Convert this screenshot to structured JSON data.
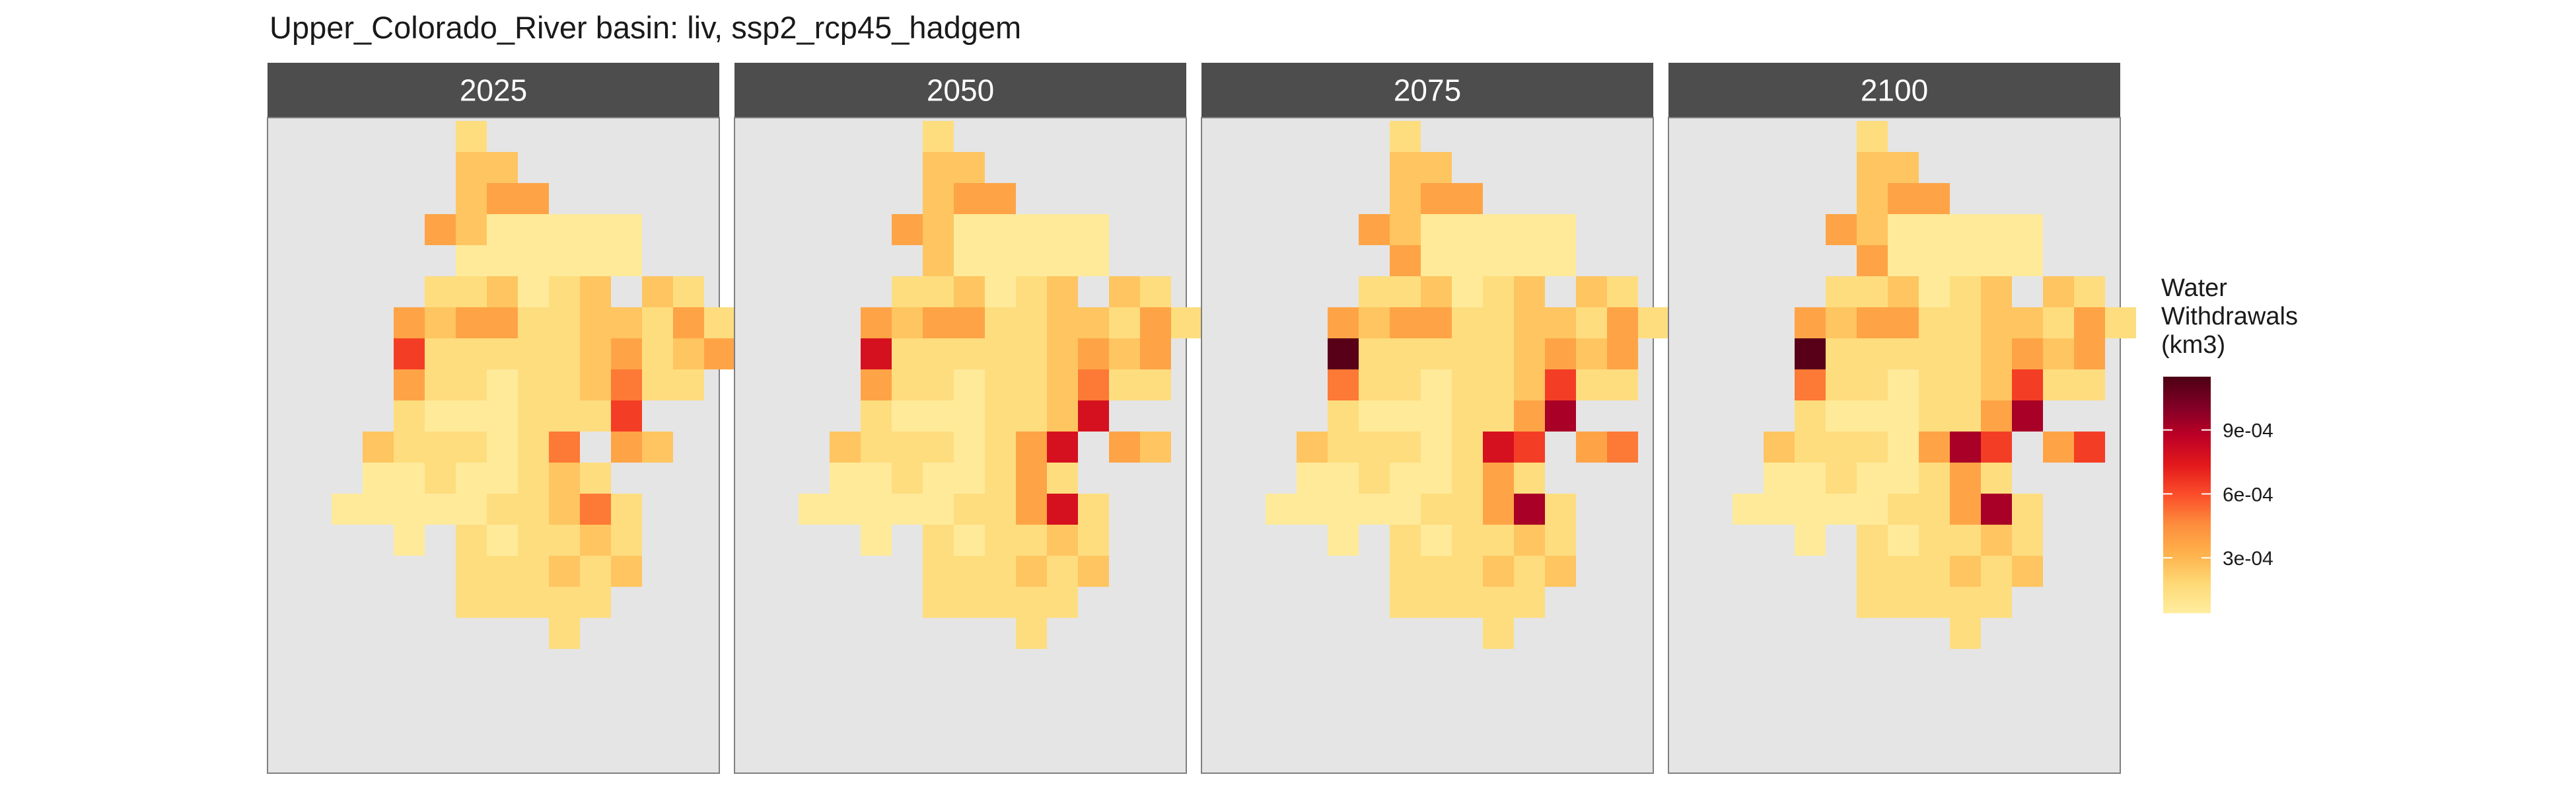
{
  "title": "Upper_Colorado_River basin: liv, ssp2_rcp45_hadgem",
  "legend": {
    "title_lines": [
      "Water",
      "Withdrawals",
      "(km3)"
    ],
    "ticks": [
      {
        "label": "3e-04",
        "value": 0.0003
      },
      {
        "label": "6e-04",
        "value": 0.0006
      },
      {
        "label": "9e-04",
        "value": 0.0009
      }
    ],
    "min": 4e-05,
    "max": 0.00115,
    "colors": [
      "#FFEDA0",
      "#FED976",
      "#FEB24C",
      "#FD8D3C",
      "#FC4E2A",
      "#E31A1C",
      "#BD0026",
      "#800026",
      "#4D0014"
    ]
  },
  "chart_data": {
    "type": "heatmap",
    "title": "Upper_Colorado_River basin: liv, ssp2_rcp45_hadgem",
    "colorbar_label": "Water Withdrawals (km3)",
    "panels": [
      {
        "label": "2025",
        "rows": [
          "      A              ",
          "      BB             ",
          "      BCC            ",
          "     CBaaaaa         ",
          "      aaaaaa         ",
          "     AABaAB BA       ",
          "    CBCCAABBACA      ",
          "    EAAAAABCABC      ",
          "    CAAaAABDAA       ",
          "    AaaaAAAE         ",
          "   BAAAaAD CB        ",
          "   aaAaaABA          ",
          "  aaaaaAABDA         ",
          "    a AaAABA         ",
          "      AAABAB         ",
          "      AAAAA          ",
          "         A           "
        ]
      },
      {
        "label": "2050",
        "rows": [
          "      A              ",
          "      BB             ",
          "      BCC            ",
          "     CBaaaaa         ",
          "      Baaaaa         ",
          "     AABaAB BA       ",
          "    CBCCAABBACA      ",
          "    FAAAAABCBC       ",
          "    CAAaAABDAA       ",
          "    AaaaAABF         ",
          "   BAAAaACF CB       ",
          "   aaAaaACA          ",
          "  aaaaaAACFA         ",
          "    a AaAABA         ",
          "      AAABAB         ",
          "      AAAAA          ",
          "         A           "
        ]
      },
      {
        "label": "2075",
        "rows": [
          "      A              ",
          "      BB             ",
          "      BCC            ",
          "     CBaaaaa         ",
          "      Caaaaa         ",
          "     AABaAB BA       ",
          "    CBCCAABBACA      ",
          "    HAAAAABCBC       ",
          "    DAAaAABEAA       ",
          "    AaaaAACG         ",
          "   BAAAaAFE CD       ",
          "   aaAaaACA          ",
          "  aaaaaAACGA         ",
          "    a AaAABA         ",
          "      AAABAB         ",
          "      AAAAA          ",
          "         A           "
        ]
      },
      {
        "label": "2100",
        "rows": [
          "      A              ",
          "      BB             ",
          "      BCC            ",
          "     CBaaaaa         ",
          "      Caaaaa         ",
          "     AABaAB BA       ",
          "    CBCCAABBACA      ",
          "    HAAAAABCBC       ",
          "    DAAaAABEAA       ",
          "    AaaaAACG         ",
          "   BAAAaCGE CE       ",
          "   aaAaaACA          ",
          "  aaaaaAACGA         ",
          "    a AaAABA         ",
          "      AAABAB         ",
          "      AAAAA          ",
          "         A           "
        ]
      }
    ],
    "level_values": {
      "a": 6e-05,
      "A": 0.00015,
      "B": 0.00025,
      "C": 0.00037,
      "D": 0.0005,
      "E": 0.00064,
      "F": 0.00078,
      "G": 0.00092,
      "H": 0.00112
    }
  }
}
